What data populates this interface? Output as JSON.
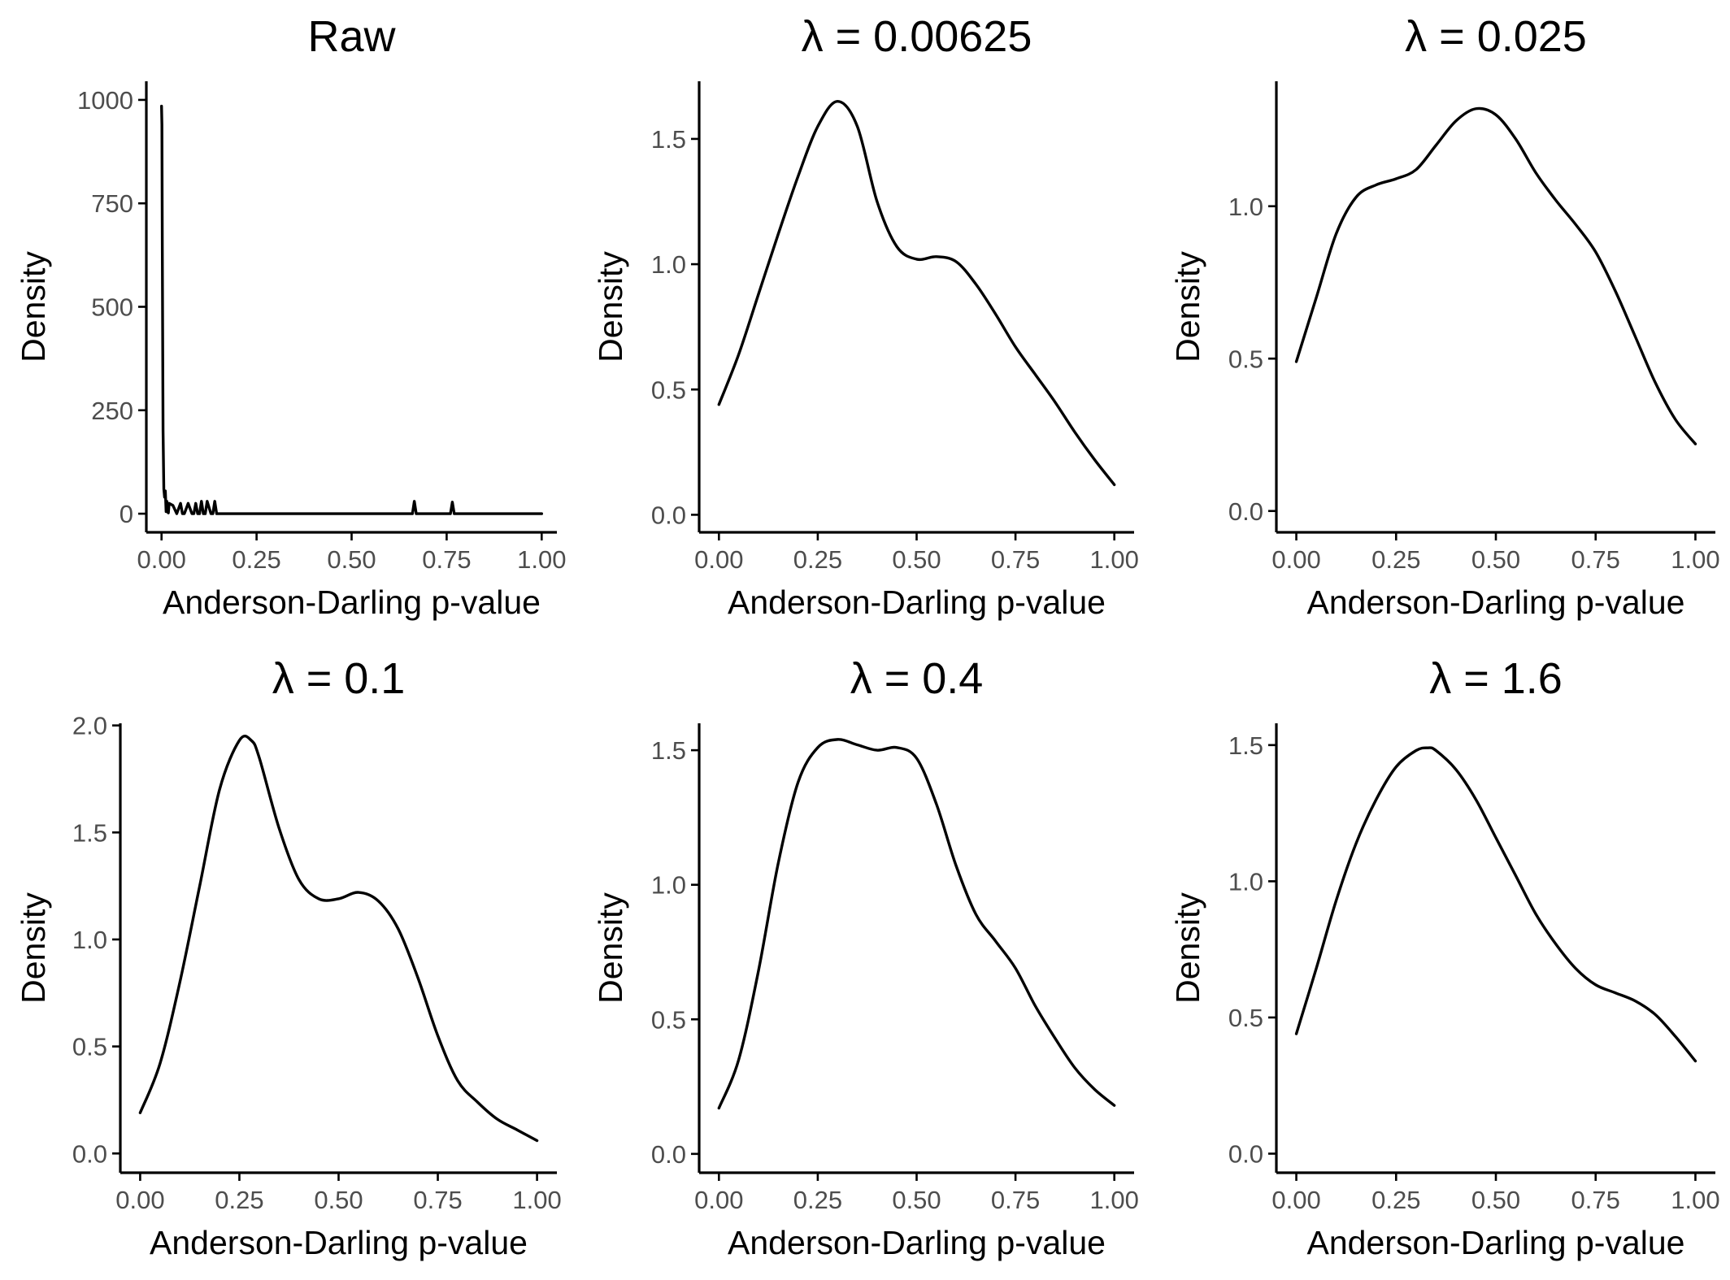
{
  "chart_data": [
    {
      "type": "line",
      "title": "Raw",
      "xlabel": "Anderson-Darling p-value",
      "ylabel": "Density",
      "xlim": [
        -0.04,
        1.04
      ],
      "ylim": [
        -45,
        1045
      ],
      "xticks": [
        0,
        0.25,
        0.5,
        0.75,
        1
      ],
      "xtick_labels": [
        "0.00",
        "0.25",
        "0.50",
        "0.75",
        "1.00"
      ],
      "yticks": [
        0,
        250,
        500,
        750,
        1000
      ],
      "ytick_labels": [
        "0",
        "250",
        "500",
        "750",
        "1000"
      ],
      "x": [
        0,
        0.001,
        0.002,
        0.004,
        0.006,
        0.008,
        0.01,
        0.012,
        0.014,
        0.016,
        0.018,
        0.02,
        0.03,
        0.04,
        0.05,
        0.055,
        0.06,
        0.07,
        0.08,
        0.085,
        0.09,
        0.095,
        0.1,
        0.105,
        0.11,
        0.115,
        0.12,
        0.13,
        0.135,
        0.14,
        0.145,
        0.15,
        0.2,
        0.3,
        0.4,
        0.5,
        0.6,
        0.66,
        0.665,
        0.67,
        0.675,
        0.68,
        0.75,
        0.76,
        0.765,
        0.77,
        0.78,
        0.9,
        1.0
      ],
      "values": [
        985,
        940,
        650,
        200,
        60,
        40,
        55,
        5,
        30,
        4,
        2,
        25,
        20,
        0,
        25,
        0,
        0,
        25,
        0,
        0,
        25,
        0,
        0,
        30,
        0,
        0,
        30,
        0,
        0,
        30,
        0,
        0,
        0,
        0,
        0,
        0,
        0,
        0,
        30,
        0,
        0,
        0,
        0,
        0,
        28,
        0,
        0,
        0,
        0
      ]
    },
    {
      "type": "line",
      "title": "λ = 0.00625",
      "xlabel": "Anderson-Darling p-value",
      "ylabel": "Density",
      "xlim": [
        -0.05,
        1.05
      ],
      "ylim": [
        -0.07,
        1.73
      ],
      "xticks": [
        0,
        0.25,
        0.5,
        0.75,
        1
      ],
      "xtick_labels": [
        "0.00",
        "0.25",
        "0.50",
        "0.75",
        "1.00"
      ],
      "yticks": [
        0,
        0.5,
        1,
        1.5
      ],
      "ytick_labels": [
        "0.0",
        "0.5",
        "1.0",
        "1.5"
      ],
      "x": [
        0,
        0.05,
        0.1,
        0.15,
        0.2,
        0.25,
        0.3,
        0.35,
        0.4,
        0.45,
        0.5,
        0.55,
        0.6,
        0.65,
        0.7,
        0.75,
        0.8,
        0.85,
        0.9,
        0.95,
        1.0
      ],
      "values": [
        0.44,
        0.64,
        0.88,
        1.12,
        1.35,
        1.55,
        1.65,
        1.55,
        1.25,
        1.07,
        1.02,
        1.03,
        1.01,
        0.92,
        0.8,
        0.67,
        0.56,
        0.45,
        0.33,
        0.22,
        0.12
      ]
    },
    {
      "type": "line",
      "title": "λ = 0.025",
      "xlabel": "Anderson-Darling p-value",
      "ylabel": "Density",
      "xlim": [
        -0.05,
        1.05
      ],
      "ylim": [
        -0.07,
        1.41
      ],
      "xticks": [
        0,
        0.25,
        0.5,
        0.75,
        1
      ],
      "xtick_labels": [
        "0.00",
        "0.25",
        "0.50",
        "0.75",
        "1.00"
      ],
      "yticks": [
        0,
        0.5,
        1
      ],
      "ytick_labels": [
        "0.0",
        "0.5",
        "1.0"
      ],
      "x": [
        0,
        0.05,
        0.1,
        0.15,
        0.2,
        0.25,
        0.3,
        0.35,
        0.4,
        0.45,
        0.5,
        0.55,
        0.6,
        0.65,
        0.7,
        0.75,
        0.8,
        0.85,
        0.9,
        0.95,
        1.0
      ],
      "values": [
        0.49,
        0.7,
        0.91,
        1.03,
        1.07,
        1.09,
        1.12,
        1.2,
        1.28,
        1.32,
        1.3,
        1.22,
        1.11,
        1.02,
        0.94,
        0.85,
        0.72,
        0.57,
        0.42,
        0.3,
        0.22
      ]
    },
    {
      "type": "line",
      "title": "λ = 0.1",
      "xlabel": "Anderson-Darling p-value",
      "ylabel": "Density",
      "xlim": [
        -0.05,
        1.05
      ],
      "ylim": [
        -0.09,
        2.01
      ],
      "xticks": [
        0,
        0.25,
        0.5,
        0.75,
        1
      ],
      "xtick_labels": [
        "0.00",
        "0.25",
        "0.50",
        "0.75",
        "1.00"
      ],
      "yticks": [
        0,
        0.5,
        1,
        1.5,
        2
      ],
      "ytick_labels": [
        "0.0",
        "0.5",
        "1.0",
        "1.5",
        "2.0"
      ],
      "x": [
        0,
        0.05,
        0.1,
        0.15,
        0.2,
        0.25,
        0.28,
        0.3,
        0.35,
        0.4,
        0.45,
        0.5,
        0.55,
        0.6,
        0.65,
        0.7,
        0.75,
        0.8,
        0.85,
        0.9,
        0.95,
        1.0
      ],
      "values": [
        0.19,
        0.42,
        0.8,
        1.25,
        1.7,
        1.93,
        1.93,
        1.85,
        1.52,
        1.28,
        1.19,
        1.19,
        1.22,
        1.18,
        1.05,
        0.82,
        0.55,
        0.34,
        0.24,
        0.16,
        0.11,
        0.06
      ]
    },
    {
      "type": "line",
      "title": "λ = 0.4",
      "xlabel": "Anderson-Darling p-value",
      "ylabel": "Density",
      "xlim": [
        -0.05,
        1.05
      ],
      "ylim": [
        -0.07,
        1.6
      ],
      "xticks": [
        0,
        0.25,
        0.5,
        0.75,
        1
      ],
      "xtick_labels": [
        "0.00",
        "0.25",
        "0.50",
        "0.75",
        "1.00"
      ],
      "yticks": [
        0,
        0.5,
        1,
        1.5
      ],
      "ytick_labels": [
        "0.0",
        "0.5",
        "1.0",
        "1.5"
      ],
      "x": [
        0,
        0.05,
        0.1,
        0.15,
        0.2,
        0.25,
        0.3,
        0.35,
        0.4,
        0.45,
        0.5,
        0.55,
        0.6,
        0.65,
        0.7,
        0.75,
        0.8,
        0.85,
        0.9,
        0.95,
        1.0
      ],
      "values": [
        0.17,
        0.35,
        0.68,
        1.08,
        1.38,
        1.51,
        1.54,
        1.52,
        1.5,
        1.51,
        1.47,
        1.3,
        1.07,
        0.89,
        0.79,
        0.69,
        0.55,
        0.43,
        0.32,
        0.24,
        0.18
      ]
    },
    {
      "type": "line",
      "title": "λ = 1.6",
      "xlabel": "Anderson-Darling p-value",
      "ylabel": "Density",
      "xlim": [
        -0.05,
        1.05
      ],
      "ylim": [
        -0.07,
        1.58
      ],
      "xticks": [
        0,
        0.25,
        0.5,
        0.75,
        1
      ],
      "xtick_labels": [
        "0.00",
        "0.25",
        "0.50",
        "0.75",
        "1.00"
      ],
      "yticks": [
        0,
        0.5,
        1,
        1.5
      ],
      "ytick_labels": [
        "0.0",
        "0.5",
        "1.0",
        "1.5"
      ],
      "x": [
        0,
        0.05,
        0.1,
        0.15,
        0.2,
        0.25,
        0.3,
        0.33,
        0.35,
        0.4,
        0.45,
        0.5,
        0.55,
        0.6,
        0.65,
        0.7,
        0.75,
        0.8,
        0.85,
        0.9,
        0.95,
        1.0
      ],
      "values": [
        0.44,
        0.68,
        0.93,
        1.14,
        1.3,
        1.42,
        1.48,
        1.49,
        1.48,
        1.41,
        1.3,
        1.16,
        1.02,
        0.88,
        0.77,
        0.68,
        0.62,
        0.59,
        0.56,
        0.51,
        0.43,
        0.34
      ]
    }
  ]
}
